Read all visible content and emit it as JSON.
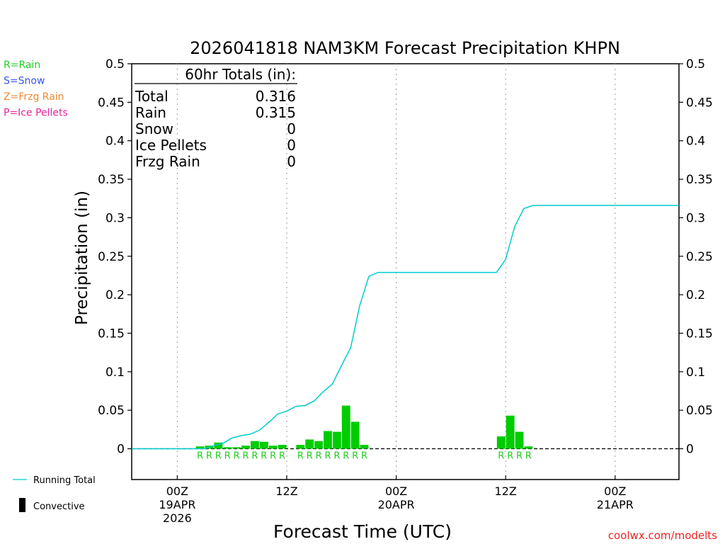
{
  "chart_data": {
    "type": "bar",
    "title": "2026041818 NAM3KM Forecast Precipitation KHPN",
    "xlabel": "Forecast Time (UTC)",
    "ylabel": "Precipitation (in)",
    "ylim": [
      -0.04,
      0.5
    ],
    "yticks": [
      0,
      0.05,
      0.1,
      0.15,
      0.2,
      0.25,
      0.3,
      0.35,
      0.4,
      0.45,
      0.5
    ],
    "ytick_labels": [
      "0",
      "0.05",
      "0.1",
      "0.15",
      "0.2",
      "0.25",
      "0.3",
      "0.35",
      "0.4",
      "0.45",
      "0.5"
    ],
    "xlim_hours": [
      -5,
      55
    ],
    "x_unit": "hours after 2026-04-19 00Z",
    "xticks": [
      {
        "hour": 0,
        "lines": [
          "00Z",
          "19APR",
          "2026"
        ]
      },
      {
        "hour": 12,
        "lines": [
          "12Z"
        ]
      },
      {
        "hour": 24,
        "lines": [
          "00Z",
          "20APR"
        ]
      },
      {
        "hour": 36,
        "lines": [
          "12Z"
        ]
      },
      {
        "hour": 48,
        "lines": [
          "00Z",
          "21APR"
        ]
      }
    ],
    "series": [
      {
        "name": "Hourly Precipitation (Rain)",
        "kind": "bar",
        "color": "#00cc00",
        "x": [
          3,
          4,
          5,
          6,
          7,
          8,
          9,
          10,
          11,
          12,
          14,
          15,
          16,
          17,
          18,
          19,
          20,
          21,
          36,
          37,
          38,
          39
        ],
        "values": [
          0.003,
          0.004,
          0.008,
          0.002,
          0.002,
          0.004,
          0.01,
          0.009,
          0.004,
          0.005,
          0.005,
          0.012,
          0.01,
          0.023,
          0.022,
          0.056,
          0.035,
          0.005,
          0.016,
          0.043,
          0.022,
          0.003
        ],
        "ptype": [
          "R",
          "R",
          "R",
          "R",
          "R",
          "R",
          "R",
          "R",
          "R",
          "R",
          "R",
          "R",
          "R",
          "R",
          "R",
          "R",
          "R",
          "R",
          "R",
          "R",
          "R",
          "R"
        ]
      },
      {
        "name": "Running Total",
        "kind": "line",
        "color": "#00cccc",
        "x": [
          -5,
          3,
          4,
          5,
          6,
          7,
          8,
          9,
          10,
          11,
          12,
          13,
          14,
          15,
          16,
          17,
          18,
          19,
          20,
          21,
          22,
          35,
          36,
          37,
          38,
          39,
          40,
          55
        ],
        "values": [
          0,
          0,
          0.004,
          0.007,
          0.014,
          0.017,
          0.019,
          0.024,
          0.034,
          0.045,
          0.049,
          0.055,
          0.056,
          0.062,
          0.074,
          0.084,
          0.108,
          0.131,
          0.186,
          0.224,
          0.229,
          0.229,
          0.246,
          0.289,
          0.312,
          0.316,
          0.316,
          0.316
        ]
      }
    ]
  },
  "totals_box": {
    "header": "60hr Totals (in):",
    "rows": [
      {
        "label": "Total",
        "value": "0.316"
      },
      {
        "label": "Rain",
        "value": "0.315"
      },
      {
        "label": "Snow",
        "value": "0"
      },
      {
        "label": "Ice Pellets",
        "value": "0"
      },
      {
        "label": "Frzg Rain",
        "value": "0"
      }
    ]
  },
  "ptype_legend": [
    {
      "text": "R=Rain",
      "color": "#22cc22"
    },
    {
      "text": "S=Snow",
      "color": "#3355ee"
    },
    {
      "text": "Z=Frzg Rain",
      "color": "#ee8833"
    },
    {
      "text": "P=Ice Pellets",
      "color": "#ee2299"
    }
  ],
  "bottom_legend": {
    "running_total": "Running Total",
    "convective": "Convective"
  },
  "credit": "coolwx.com/modelts"
}
